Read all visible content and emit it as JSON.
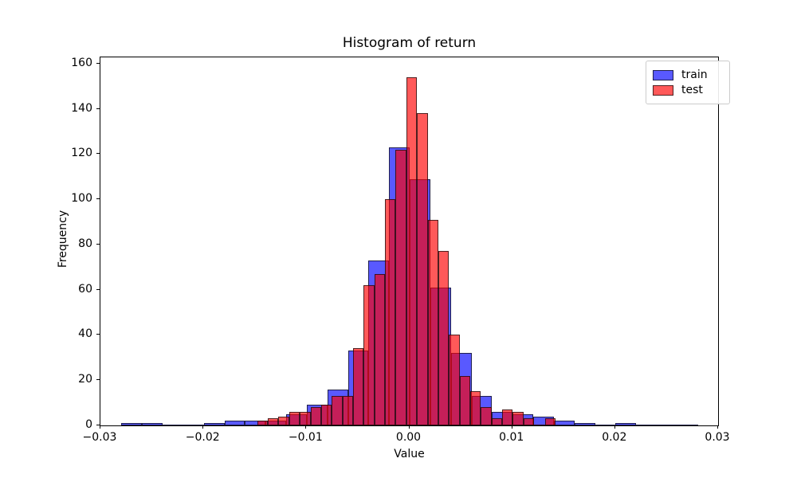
{
  "figure": {
    "background": "#ffffff",
    "spine_color": "#000000"
  },
  "chart_data": {
    "type": "histogram",
    "title": "Histogram of return",
    "xlabel": "Value",
    "ylabel": "Frequency",
    "xlim": [
      -0.03,
      0.03
    ],
    "ylim": [
      0,
      162.7
    ],
    "grid": false,
    "x_ticks": {
      "values": [
        -0.03,
        -0.02,
        -0.01,
        0.0,
        0.01,
        0.02,
        0.03
      ],
      "labels": [
        "−0.03",
        "−0.02",
        "−0.01",
        "0.00",
        "0.01",
        "0.02",
        "0.03"
      ]
    },
    "y_ticks": {
      "values": [
        0,
        20,
        40,
        60,
        80,
        100,
        120,
        140,
        160
      ],
      "labels": [
        "0",
        "20",
        "40",
        "60",
        "80",
        "100",
        "120",
        "140",
        "160"
      ]
    },
    "legend": {
      "position": "upper right",
      "entries": [
        "train",
        "test"
      ]
    },
    "series": [
      {
        "name": "train",
        "color": "#0000ff",
        "fill_rgba": "rgba(0,0,255,0.65)",
        "bin_start": -0.02795,
        "bin_width": 0.002,
        "counts": [
          1,
          1,
          0,
          0,
          1,
          2,
          2,
          2,
          5,
          9,
          16,
          33,
          73,
          123,
          109,
          61,
          32,
          13,
          6,
          5,
          4,
          2,
          1,
          0,
          1,
          0,
          0,
          0
        ]
      },
      {
        "name": "test",
        "color": "#ff0000",
        "fill_rgba": "rgba(255,0,0,0.65)",
        "bin_start": -0.014772,
        "bin_width": 0.0010346,
        "counts": [
          2,
          3,
          4,
          6,
          6,
          8,
          9,
          13,
          13,
          34,
          62,
          67,
          100,
          122,
          154,
          138,
          91,
          77,
          40,
          22,
          15,
          8,
          3,
          7,
          6,
          3,
          0,
          3
        ]
      }
    ]
  }
}
